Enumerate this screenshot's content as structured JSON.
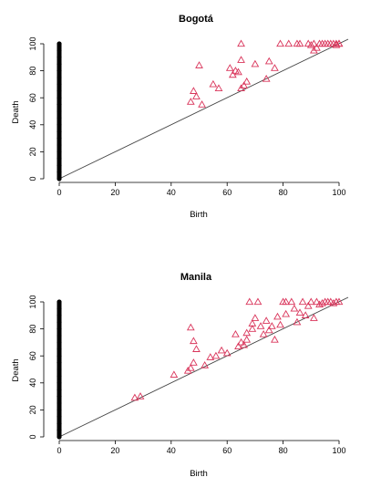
{
  "chart_data": [
    {
      "type": "scatter",
      "title": "Bogotá",
      "xlabel": "Birth",
      "ylabel": "Death",
      "xlim": [
        0,
        100
      ],
      "ylim": [
        0,
        100
      ],
      "xticks": [
        0,
        20,
        40,
        60,
        80,
        100
      ],
      "yticks": [
        0,
        20,
        40,
        60,
        80,
        100
      ],
      "diagonal": true,
      "series": [
        {
          "marker": "circle",
          "color": "#000000",
          "points": [
            [
              0,
              0
            ],
            [
              0,
              5
            ],
            [
              0,
              10
            ],
            [
              0,
              15
            ],
            [
              0,
              20
            ],
            [
              0,
              25
            ],
            [
              0,
              30
            ],
            [
              0,
              35
            ],
            [
              0,
              40
            ],
            [
              0,
              45
            ],
            [
              0,
              50
            ],
            [
              0,
              55
            ],
            [
              0,
              60
            ],
            [
              0,
              65
            ],
            [
              0,
              70
            ],
            [
              0,
              75
            ],
            [
              0,
              80
            ],
            [
              0,
              85
            ],
            [
              0,
              90
            ],
            [
              0,
              95
            ],
            [
              0,
              100
            ]
          ]
        },
        {
          "marker": "triangle",
          "color": "#d9345a",
          "points": [
            [
              50,
              84
            ],
            [
              48,
              65
            ],
            [
              47,
              57
            ],
            [
              49,
              61
            ],
            [
              51,
              55
            ],
            [
              55,
              70
            ],
            [
              57,
              67
            ],
            [
              61,
              82
            ],
            [
              62,
              77
            ],
            [
              63,
              80
            ],
            [
              64,
              79
            ],
            [
              65,
              100
            ],
            [
              65,
              88
            ],
            [
              65,
              67
            ],
            [
              66,
              69
            ],
            [
              67,
              72
            ],
            [
              70,
              85
            ],
            [
              74,
              74
            ],
            [
              75,
              87
            ],
            [
              77,
              82
            ],
            [
              79,
              100
            ],
            [
              82,
              100
            ],
            [
              85,
              100
            ],
            [
              86,
              100
            ],
            [
              89,
              100
            ],
            [
              90,
              99
            ],
            [
              91,
              100
            ],
            [
              91,
              95
            ],
            [
              92,
              97
            ],
            [
              93,
              100
            ],
            [
              94,
              100
            ],
            [
              95,
              100
            ],
            [
              96,
              100
            ],
            [
              97,
              100
            ],
            [
              98,
              100
            ],
            [
              99,
              100
            ],
            [
              99,
              99
            ],
            [
              100,
              100
            ],
            [
              100,
              100
            ]
          ]
        }
      ]
    },
    {
      "type": "scatter",
      "title": "Manila",
      "xlabel": "Birth",
      "ylabel": "Death",
      "xlim": [
        0,
        100
      ],
      "ylim": [
        0,
        100
      ],
      "xticks": [
        0,
        20,
        40,
        60,
        80,
        100
      ],
      "yticks": [
        0,
        20,
        40,
        60,
        80,
        100
      ],
      "diagonal": true,
      "series": [
        {
          "marker": "circle",
          "color": "#000000",
          "points": [
            [
              0,
              0
            ],
            [
              0,
              5
            ],
            [
              0,
              10
            ],
            [
              0,
              15
            ],
            [
              0,
              20
            ],
            [
              0,
              25
            ],
            [
              0,
              30
            ],
            [
              0,
              35
            ],
            [
              0,
              40
            ],
            [
              0,
              45
            ],
            [
              0,
              50
            ],
            [
              0,
              55
            ],
            [
              0,
              60
            ],
            [
              0,
              65
            ],
            [
              0,
              70
            ],
            [
              0,
              75
            ],
            [
              0,
              80
            ],
            [
              0,
              85
            ],
            [
              0,
              90
            ],
            [
              0,
              95
            ],
            [
              0,
              100
            ]
          ]
        },
        {
          "marker": "triangle",
          "color": "#d9345a",
          "points": [
            [
              27,
              29
            ],
            [
              29,
              30
            ],
            [
              41,
              46
            ],
            [
              46,
              49
            ],
            [
              47,
              51
            ],
            [
              47,
              81
            ],
            [
              48,
              71
            ],
            [
              48,
              55
            ],
            [
              49,
              65
            ],
            [
              52,
              53
            ],
            [
              54,
              59
            ],
            [
              56,
              60
            ],
            [
              58,
              64
            ],
            [
              60,
              62
            ],
            [
              63,
              76
            ],
            [
              64,
              67
            ],
            [
              65,
              70
            ],
            [
              66,
              68
            ],
            [
              67,
              72
            ],
            [
              67,
              77
            ],
            [
              68,
              100
            ],
            [
              69,
              84
            ],
            [
              69,
              80
            ],
            [
              70,
              88
            ],
            [
              71,
              100
            ],
            [
              72,
              82
            ],
            [
              73,
              76
            ],
            [
              74,
              86
            ],
            [
              75,
              79
            ],
            [
              76,
              82
            ],
            [
              77,
              72
            ],
            [
              78,
              89
            ],
            [
              79,
              83
            ],
            [
              80,
              100
            ],
            [
              81,
              100
            ],
            [
              81,
              91
            ],
            [
              83,
              100
            ],
            [
              84,
              95
            ],
            [
              85,
              85
            ],
            [
              86,
              92
            ],
            [
              87,
              100
            ],
            [
              88,
              90
            ],
            [
              89,
              97
            ],
            [
              90,
              100
            ],
            [
              91,
              88
            ],
            [
              92,
              100
            ],
            [
              93,
              98
            ],
            [
              94,
              99
            ],
            [
              95,
              100
            ],
            [
              96,
              100
            ],
            [
              97,
              100
            ],
            [
              98,
              99
            ],
            [
              99,
              100
            ],
            [
              100,
              100
            ]
          ]
        }
      ]
    }
  ]
}
